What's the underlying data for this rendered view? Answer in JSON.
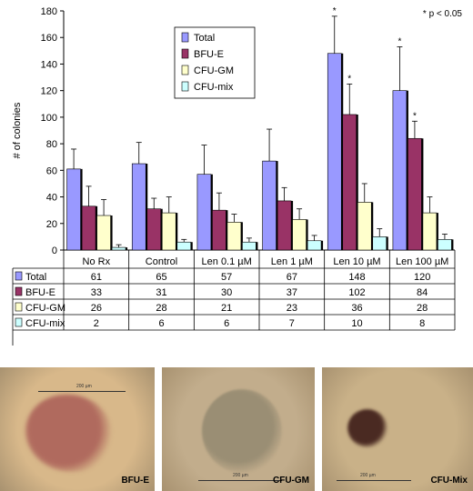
{
  "chart_data": {
    "type": "bar",
    "significance_note": "* p < 0.05",
    "ylabel": "# of colonies",
    "ylim": [
      0,
      180
    ],
    "yticks": [
      0,
      20,
      40,
      60,
      80,
      100,
      120,
      140,
      160,
      180
    ],
    "categories": [
      "No Rx",
      "Control",
      "Len 0.1 µM",
      "Len 1 µM",
      "Len 10 µM",
      "Len 100 µM"
    ],
    "series": [
      {
        "name": "Total",
        "color": "#9999ff",
        "values": [
          61,
          65,
          57,
          67,
          148,
          120
        ],
        "errors": [
          15,
          16,
          22,
          24,
          28,
          33
        ]
      },
      {
        "name": "BFU-E",
        "color": "#993366",
        "values": [
          33,
          31,
          30,
          37,
          102,
          84
        ],
        "errors": [
          15,
          8,
          13,
          10,
          23,
          13
        ]
      },
      {
        "name": "CFU-GM",
        "color": "#ffffcc",
        "values": [
          26,
          28,
          21,
          23,
          36,
          28
        ],
        "errors": [
          12,
          12,
          6,
          8,
          14,
          12
        ]
      },
      {
        "name": "CFU-mix",
        "color": "#ccffff",
        "values": [
          2,
          6,
          6,
          7,
          10,
          8
        ],
        "errors": [
          2,
          2,
          3,
          4,
          6,
          4
        ]
      }
    ],
    "significance_marks": [
      {
        "category_index": 4,
        "series": [
          "Total",
          "BFU-E"
        ],
        "label": "*"
      },
      {
        "category_index": 5,
        "series": [
          "Total",
          "BFU-E"
        ],
        "label": "*"
      }
    ],
    "legend_position": "top-center",
    "grid": false
  },
  "photos": [
    {
      "caption": "BFU-E",
      "scale_label": "200 µm",
      "bg": "#d8b88a",
      "colony": "#b06a5e"
    },
    {
      "caption": "CFU-GM",
      "scale_label": "200 µm",
      "bg": "#c2ad8c",
      "colony": "#9a8e74"
    },
    {
      "caption": "CFU-Mix",
      "scale_label": "200 µm",
      "bg": "#c9b188",
      "colony": "#4a2a22"
    }
  ]
}
